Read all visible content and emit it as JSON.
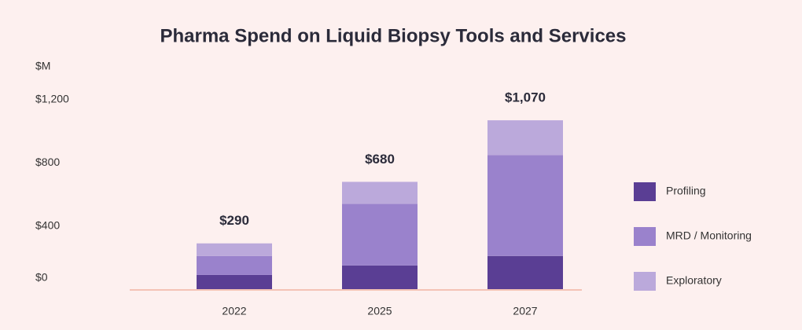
{
  "chart_data": {
    "type": "stacked_bar",
    "title": "Pharma Spend on Liquid Biopsy Tools and Services",
    "y_label": "$M",
    "categories": [
      "2022",
      "2025",
      "2027"
    ],
    "series": [
      {
        "name": "Profiling",
        "color": "#5a3e94",
        "values": [
          90,
          150,
          210
        ]
      },
      {
        "name": "MRD / Monitoring",
        "color": "#9a82cc",
        "values": [
          120,
          390,
          640
        ]
      },
      {
        "name": "Exploratory",
        "color": "#bba9db",
        "values": [
          80,
          140,
          220
        ]
      }
    ],
    "total_labels": [
      "$290",
      "$680",
      "$1,070"
    ],
    "ylim": [
      0,
      1200
    ],
    "yticks": [
      {
        "value": 0,
        "label": "$0"
      },
      {
        "value": 400,
        "label": "$400"
      },
      {
        "value": 800,
        "label": "$800"
      },
      {
        "value": 1200,
        "label": "$1,200"
      }
    ],
    "grid": false,
    "legend": "right"
  }
}
